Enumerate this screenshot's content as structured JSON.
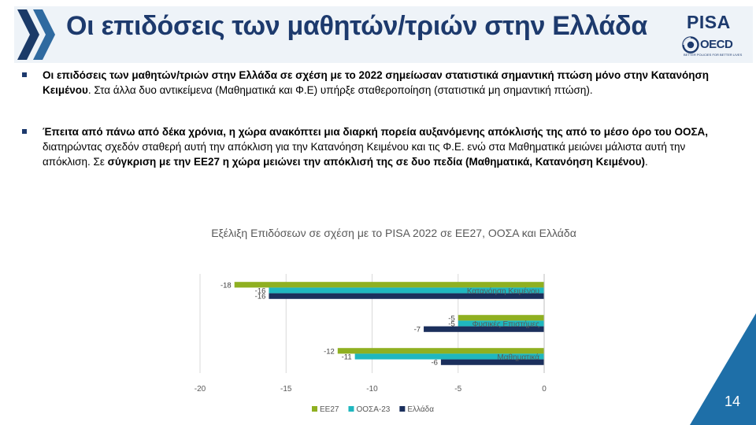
{
  "slide": {
    "title": "Οι επιδόσεις των μαθητών/τριών στην Ελλάδα",
    "page_number": "14"
  },
  "logos": {
    "pisa": "PISA",
    "oecd": "OECD",
    "oecd_tagline": "BETTER POLICIES FOR BETTER LIVES"
  },
  "bullets": [
    [
      {
        "text": "Οι επιδόσεις των μαθητών/τριών στην Ελλάδα σε σχέση με το 2022 σημείωσαν στατιστικά σημαντική πτώση μόνο στην Κατανόηση Κειμένου",
        "bold": true
      },
      {
        "text": ". Στα άλλα δυο αντικείμενα (Μαθηματικά και Φ.Ε) υπήρξε σταθεροποίηση (στατιστικά μη σημαντική πτώση).",
        "bold": false
      }
    ],
    [
      {
        "text": "Έπειτα από πάνω από δέκα χρόνια, η χώρα ανακόπτει μια διαρκή πορεία αυξανόμενης απόκλισής της από το μέσο όρο του ΟΟΣΑ,",
        "bold": true
      },
      {
        "text": " διατηρώντας σχεδόν σταθερή αυτή την απόκλιση για την Κατανόηση Κειμένου και τις Φ.Ε. ενώ στα Μαθηματικά μειώνει μάλιστα αυτή την απόκλιση. Σε ",
        "bold": false
      },
      {
        "text": "σύγκριση με την ΕΕ27 η χώρα μειώνει την απόκλισή της σε δυο πεδία (Μαθηματικά, Κατανόηση Κειμένου)",
        "bold": true
      },
      {
        "text": ".",
        "bold": false
      }
    ]
  ],
  "chart_data": {
    "type": "bar",
    "orientation": "horizontal",
    "title": "Εξέλιξη Επιδόσεων σε σχέση με το PISA 2022 σε ΕΕ27, ΟΟΣΑ και Ελλάδα",
    "categories": [
      "Κατανόηση Κειμένου",
      "Φυσικές Επιστήμες",
      "Μαθηματικά"
    ],
    "series": [
      {
        "name": "ΕΕ27",
        "color": "#8fb021",
        "values": [
          -18,
          -5,
          -12
        ]
      },
      {
        "name": "ΟΟΣΑ-23",
        "color": "#1fb7bf",
        "values": [
          -16,
          -5,
          -11
        ]
      },
      {
        "name": "Ελλάδα",
        "color": "#1b2f5c",
        "values": [
          -16,
          -7,
          -6
        ]
      }
    ],
    "xlim": [
      -20,
      0
    ],
    "xticks": [
      -20,
      -15,
      -10,
      -5,
      0
    ],
    "gridlines": true,
    "legend_position": "bottom",
    "data_labels": true
  },
  "colors": {
    "title_text": "#1d3a6d",
    "title_band": "#eef3f8",
    "chevron_dark": "#1b3a68",
    "chevron_light": "#2f6aa0",
    "page_corner": "#1e6fa8"
  }
}
